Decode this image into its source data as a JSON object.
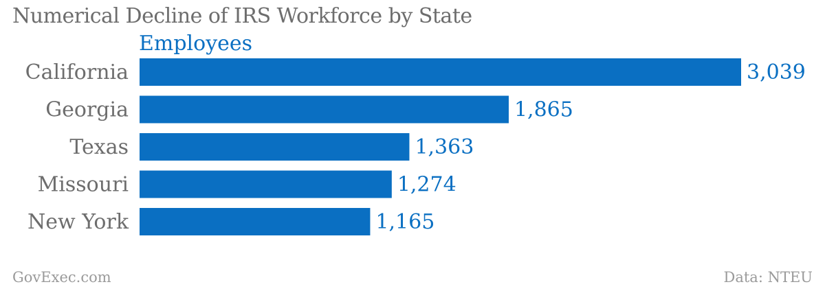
{
  "chart_data": {
    "type": "bar",
    "orientation": "horizontal",
    "title": "Numerical Decline of IRS Workforce by State",
    "series": [
      {
        "name": "Employees",
        "values": [
          3039,
          1865,
          1363,
          1274,
          1165
        ]
      }
    ],
    "categories": [
      "California",
      "Georgia",
      "Texas",
      "Missouri",
      "New York"
    ],
    "value_labels": [
      "3,039",
      "1,865",
      "1,363",
      "1,274",
      "1,165"
    ],
    "xlim": [
      0,
      3039
    ],
    "grid": false,
    "bar_color": "#0a6fc2"
  },
  "footer": {
    "source_left": "GovExec.com",
    "source_right": "Data: NTEU"
  }
}
